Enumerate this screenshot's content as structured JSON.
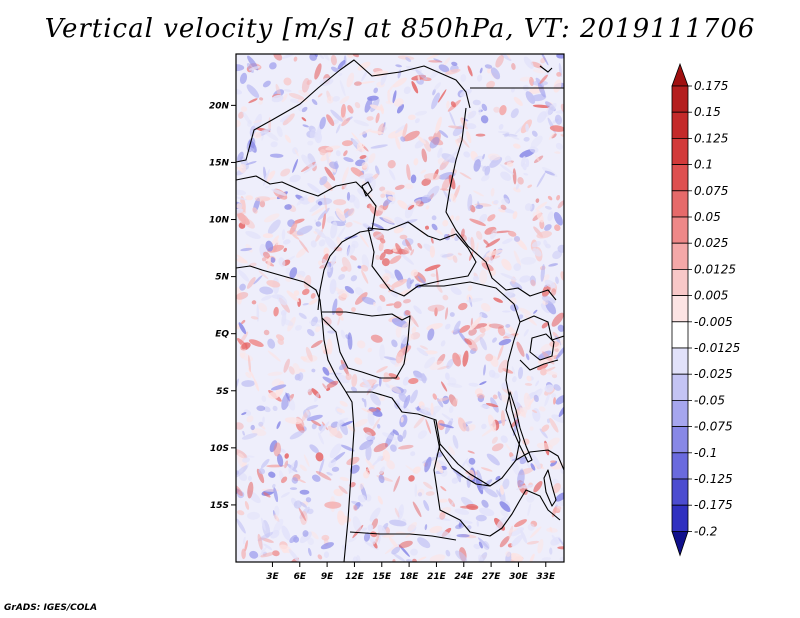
{
  "title": "Vertical velocity [m/s] at 850hPa, VT: 2019111706",
  "credit": "GrADS: IGES/COLA",
  "map": {
    "lon_range": [
      -1,
      35
    ],
    "lat_range": [
      -20,
      24.5
    ],
    "lon_ticks": [
      {
        "value": 3,
        "label": "3E"
      },
      {
        "value": 6,
        "label": "6E"
      },
      {
        "value": 9,
        "label": "9E"
      },
      {
        "value": 12,
        "label": "12E"
      },
      {
        "value": 15,
        "label": "15E"
      },
      {
        "value": 18,
        "label": "18E"
      },
      {
        "value": 21,
        "label": "21E"
      },
      {
        "value": 24,
        "label": "24E"
      },
      {
        "value": 27,
        "label": "27E"
      },
      {
        "value": 30,
        "label": "30E"
      },
      {
        "value": 33,
        "label": "33E"
      }
    ],
    "lat_ticks": [
      {
        "value": 20,
        "label": "20N"
      },
      {
        "value": 15,
        "label": "15N"
      },
      {
        "value": 10,
        "label": "10N"
      },
      {
        "value": 5,
        "label": "5N"
      },
      {
        "value": 0,
        "label": "EQ"
      },
      {
        "value": -5,
        "label": "5S"
      },
      {
        "value": -10,
        "label": "10S"
      },
      {
        "value": -15,
        "label": "15S"
      }
    ]
  },
  "colorbar": {
    "levels": [
      {
        "label": "0.175",
        "color": "#b41e1e"
      },
      {
        "label": "0.15",
        "color": "#c42a2a"
      },
      {
        "label": "0.125",
        "color": "#d23a3a"
      },
      {
        "label": "0.1",
        "color": "#de5050"
      },
      {
        "label": "0.075",
        "color": "#e66a6a"
      },
      {
        "label": "0.05",
        "color": "#ee8888"
      },
      {
        "label": "0.025",
        "color": "#f4a8a8"
      },
      {
        "label": "0.0125",
        "color": "#f8c8c8"
      },
      {
        "label": "0.005",
        "color": "#fce4e4"
      },
      {
        "label": "-0.005",
        "color": "#ffffff"
      },
      {
        "label": "-0.0125",
        "color": "#e2e2fa"
      },
      {
        "label": "-0.025",
        "color": "#c4c4f4"
      },
      {
        "label": "-0.05",
        "color": "#a6a6ee"
      },
      {
        "label": "-0.075",
        "color": "#8888e6"
      },
      {
        "label": "-0.1",
        "color": "#6a6ade"
      },
      {
        "label": "-0.125",
        "color": "#4c4cd0"
      },
      {
        "label": "-0.175",
        "color": "#3030c0"
      },
      {
        "label": "-0.2",
        "color": "#1a1aa8"
      }
    ],
    "top_arrow_color": "#a01010",
    "bottom_arrow_color": "#10108c"
  }
}
